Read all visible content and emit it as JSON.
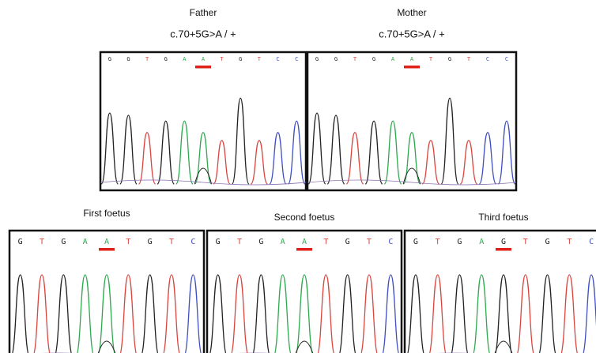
{
  "panels": [
    {
      "label": "Father",
      "genotype": "c.70+5G>A / +",
      "bases": [
        "G",
        "G",
        "T",
        "G",
        "A",
        "A",
        "T",
        "G",
        "T",
        "C",
        "C"
      ]
    },
    {
      "label": "Mother",
      "genotype": "c.70+5G>A / +",
      "bases": [
        "G",
        "G",
        "T",
        "G",
        "A",
        "A",
        "T",
        "G",
        "T",
        "C",
        "C"
      ]
    },
    {
      "label": "First foetus",
      "bases": [
        "G",
        "T",
        "G",
        "A",
        "A",
        "T",
        "G",
        "T",
        "C"
      ]
    },
    {
      "label": "Second foetus",
      "bases": [
        "G",
        "T",
        "G",
        "A",
        "A",
        "T",
        "G",
        "T",
        "C"
      ]
    },
    {
      "label": "Third foetus",
      "bases": [
        "G",
        "T",
        "G",
        "A",
        "G",
        "T",
        "G",
        "T",
        "C"
      ]
    }
  ]
}
